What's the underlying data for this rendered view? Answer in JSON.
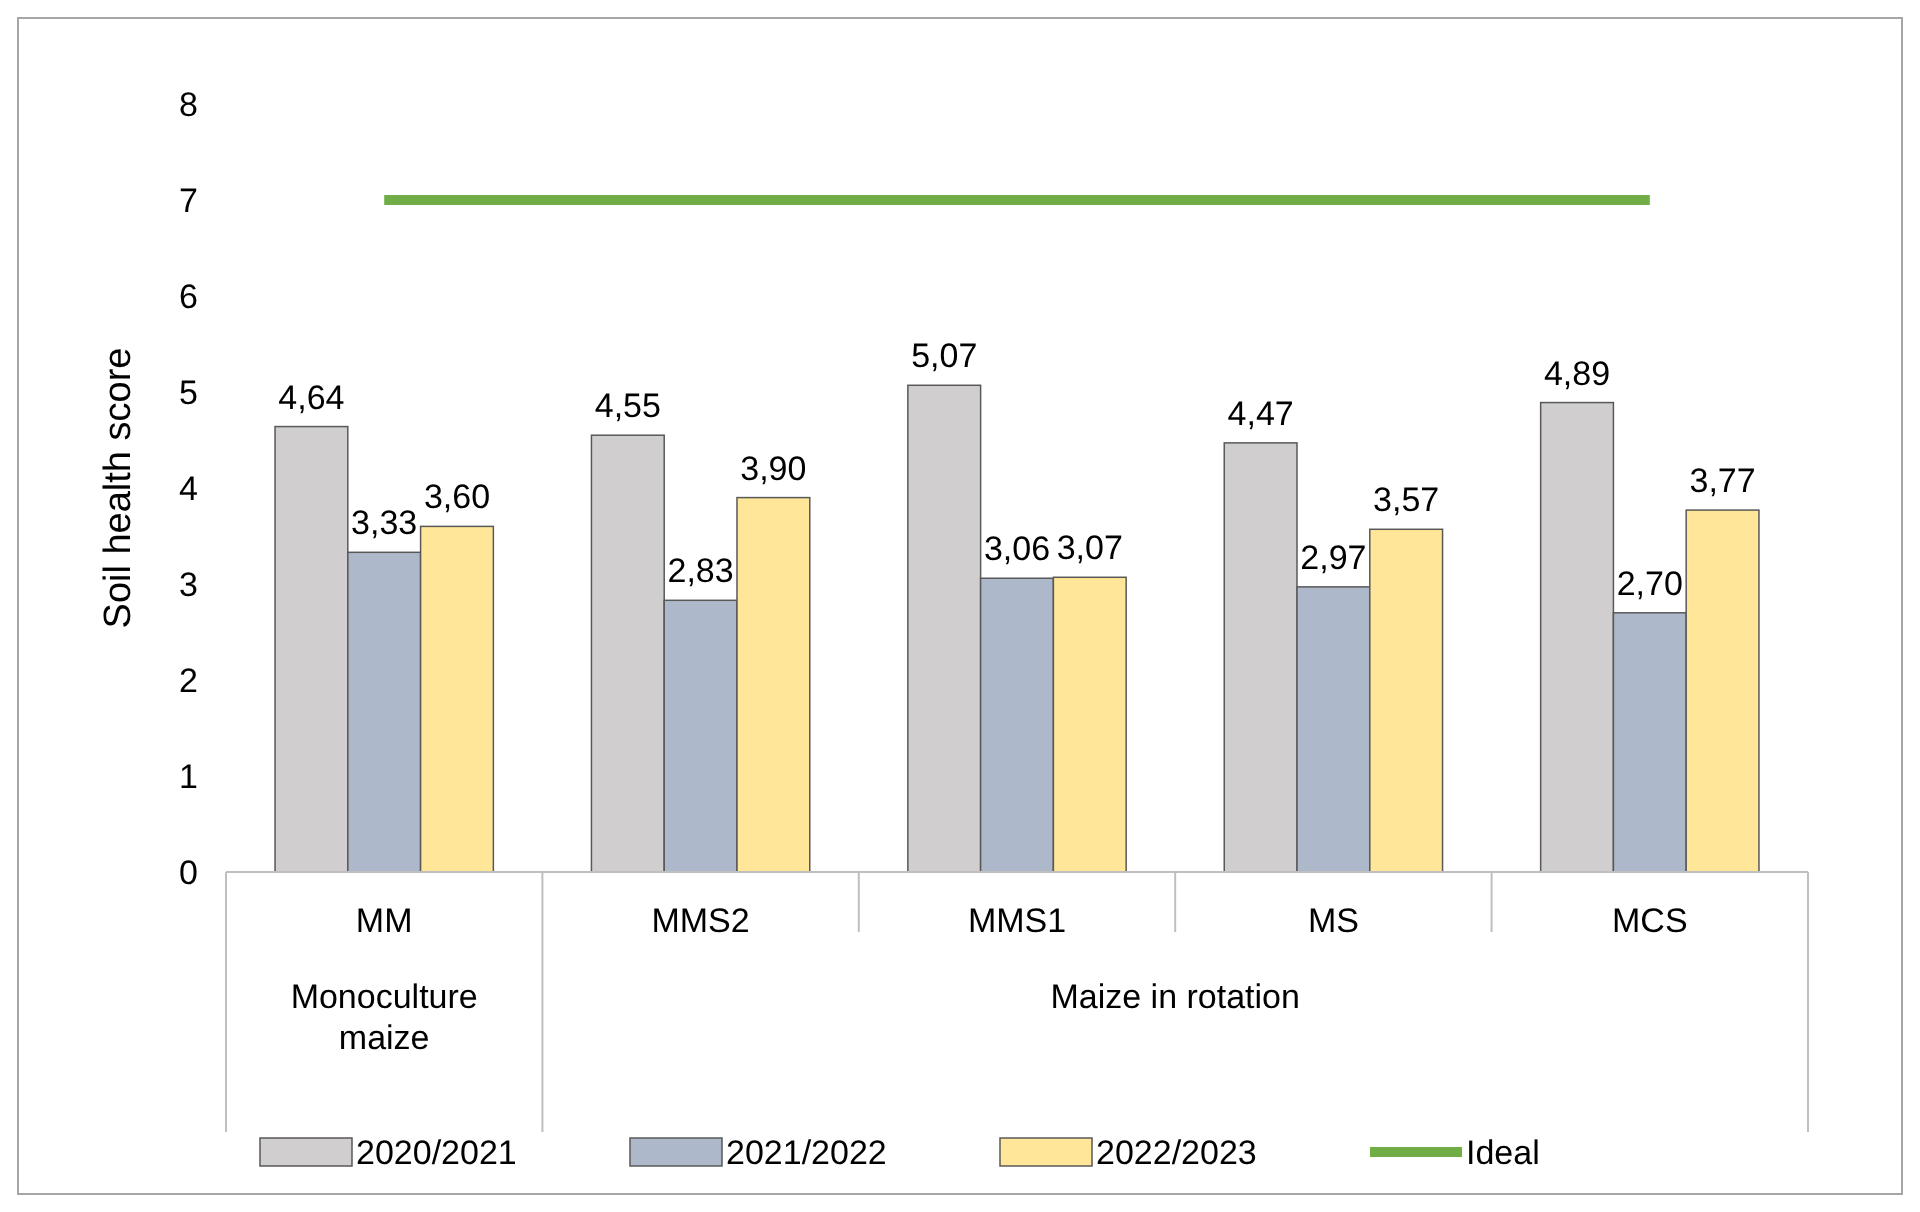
{
  "chart_data": {
    "type": "bar",
    "ylabel": "Soil health score",
    "categories": [
      "MM",
      "MMS2",
      "MMS1",
      "MS",
      "MCS"
    ],
    "series": [
      {
        "name": "2020/2021",
        "color": "#d0cece",
        "values": [
          4.64,
          4.55,
          5.07,
          4.47,
          4.89
        ],
        "value_labels": [
          "4,64",
          "4,55",
          "5,07",
          "4,47",
          "4,89"
        ]
      },
      {
        "name": "2021/2022",
        "color": "#adb9ca",
        "values": [
          3.33,
          2.83,
          3.06,
          2.97,
          2.7
        ],
        "value_labels": [
          "3,33",
          "2,83",
          "3,06",
          "2,97",
          "2,70"
        ]
      },
      {
        "name": "2022/2023",
        "color": "#ffe699",
        "values": [
          3.6,
          3.9,
          3.07,
          3.57,
          3.77
        ],
        "value_labels": [
          "3,60",
          "3,90",
          "3,07",
          "3,57",
          "3,77"
        ]
      },
      {
        "name": "Ideal",
        "type": "line",
        "color": "#70ad47",
        "values": [
          7,
          7,
          7,
          7,
          7
        ]
      }
    ],
    "annotations": [
      "Monoculture maize",
      "Maize in rotation"
    ],
    "ylim": [
      0,
      8
    ],
    "yticks": [
      0,
      1,
      2,
      3,
      4,
      5,
      6,
      7,
      8
    ],
    "grid": false,
    "legend": "bottom"
  }
}
